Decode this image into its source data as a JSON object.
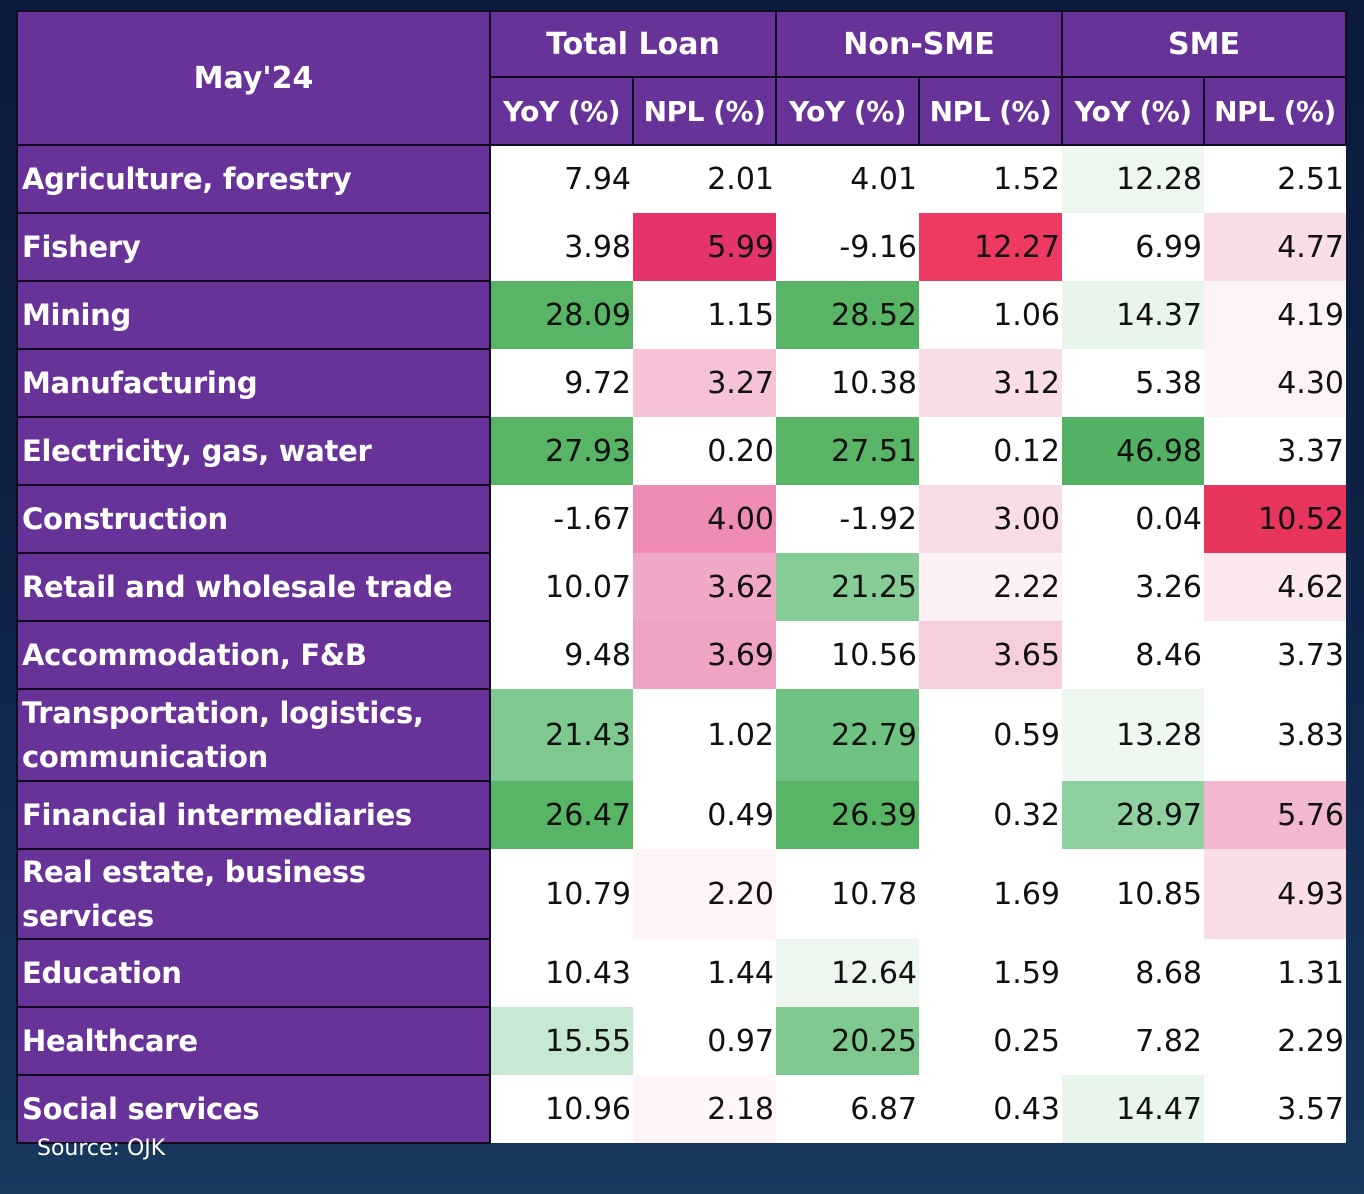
{
  "chart_data": {
    "type": "table",
    "title": "May'24",
    "groups": [
      "Total Loan",
      "Non-SME",
      "SME"
    ],
    "subheaders": [
      "YoY (%)",
      "NPL (%)",
      "YoY (%)",
      "NPL (%)",
      "YoY (%)",
      "NPL (%)"
    ],
    "rows": [
      {
        "label": "Agriculture, forestry",
        "values": [
          "7.94",
          "2.01",
          "4.01",
          "1.52",
          "12.28",
          "2.51"
        ]
      },
      {
        "label": "Fishery",
        "values": [
          "3.98",
          "5.99",
          "-9.16",
          "12.27",
          "6.99",
          "4.77"
        ]
      },
      {
        "label": "Mining",
        "values": [
          "28.09",
          "1.15",
          "28.52",
          "1.06",
          "14.37",
          "4.19"
        ]
      },
      {
        "label": "Manufacturing",
        "values": [
          "9.72",
          "3.27",
          "10.38",
          "3.12",
          "5.38",
          "4.30"
        ]
      },
      {
        "label": "Electricity, gas, water",
        "values": [
          "27.93",
          "0.20",
          "27.51",
          "0.12",
          "46.98",
          "3.37"
        ]
      },
      {
        "label": "Construction",
        "values": [
          "-1.67",
          "4.00",
          "-1.92",
          "3.00",
          "0.04",
          "10.52"
        ]
      },
      {
        "label": "Retail and wholesale trade",
        "values": [
          "10.07",
          "3.62",
          "21.25",
          "2.22",
          "3.26",
          "4.62"
        ]
      },
      {
        "label": "Accommodation, F&B",
        "values": [
          "9.48",
          "3.69",
          "10.56",
          "3.65",
          "8.46",
          "3.73"
        ]
      },
      {
        "label": "Transportation, logistics, communication",
        "values": [
          "21.43",
          "1.02",
          "22.79",
          "0.59",
          "13.28",
          "3.83"
        ]
      },
      {
        "label": "Financial intermediaries",
        "values": [
          "26.47",
          "0.49",
          "26.39",
          "0.32",
          "28.97",
          "5.76"
        ]
      },
      {
        "label": "Real estate, business services",
        "values": [
          "10.79",
          "2.20",
          "10.78",
          "1.69",
          "10.85",
          "4.93"
        ]
      },
      {
        "label": "Education",
        "values": [
          "10.43",
          "1.44",
          "12.64",
          "1.59",
          "8.68",
          "1.31"
        ]
      },
      {
        "label": "Healthcare",
        "values": [
          "15.55",
          "0.97",
          "20.25",
          "0.25",
          "7.82",
          "2.29"
        ]
      },
      {
        "label": "Social services",
        "values": [
          "10.96",
          "2.18",
          "6.87",
          "0.43",
          "14.47",
          "3.57"
        ]
      }
    ],
    "cell_colors": [
      [
        "#ffffff",
        "#ffffff",
        "#ffffff",
        "#ffffff",
        "#edf7ef",
        "#ffffff"
      ],
      [
        "#ffffff",
        "#e5346a",
        "#ffffff",
        "#ee3a62",
        "#ffffff",
        "#f9dde8"
      ],
      [
        "#58b566",
        "#ffffff",
        "#58b566",
        "#ffffff",
        "#e8f5ea",
        "#fdf3f7"
      ],
      [
        "#ffffff",
        "#f5c2d7",
        "#ffffff",
        "#f9dde8",
        "#ffffff",
        "#fdf3f7"
      ],
      [
        "#58b566",
        "#ffffff",
        "#58b566",
        "#ffffff",
        "#53b163",
        "#ffffff"
      ],
      [
        "#ffffff",
        "#ee8cb5",
        "#ffffff",
        "#f8dde7",
        "#ffffff",
        "#e7355e"
      ],
      [
        "#ffffff",
        "#f1a8c8",
        "#86cc96",
        "#fdf1f5",
        "#ffffff",
        "#fbe7ef"
      ],
      [
        "#ffffff",
        "#f0a4c5",
        "#ffffff",
        "#f6cfdf",
        "#ffffff",
        "#ffffff"
      ],
      [
        "#7fc990",
        "#ffffff",
        "#6ec382",
        "#ffffff",
        "#eef8f0",
        "#ffffff"
      ],
      [
        "#58b566",
        "#ffffff",
        "#58b566",
        "#ffffff",
        "#8fd0a0",
        "#f2b8d0"
      ],
      [
        "#ffffff",
        "#fef4f8",
        "#ffffff",
        "#ffffff",
        "#ffffff",
        "#f9dde8"
      ],
      [
        "#ffffff",
        "#ffffff",
        "#edf7ef",
        "#ffffff",
        "#ffffff",
        "#ffffff"
      ],
      [
        "#c7e8d1",
        "#ffffff",
        "#7fc990",
        "#ffffff",
        "#ffffff",
        "#ffffff"
      ],
      [
        "#ffffff",
        "#fef5f8",
        "#ffffff",
        "#ffffff",
        "#e7f5ea",
        "#ffffff"
      ]
    ]
  },
  "source": "Source: OJK"
}
